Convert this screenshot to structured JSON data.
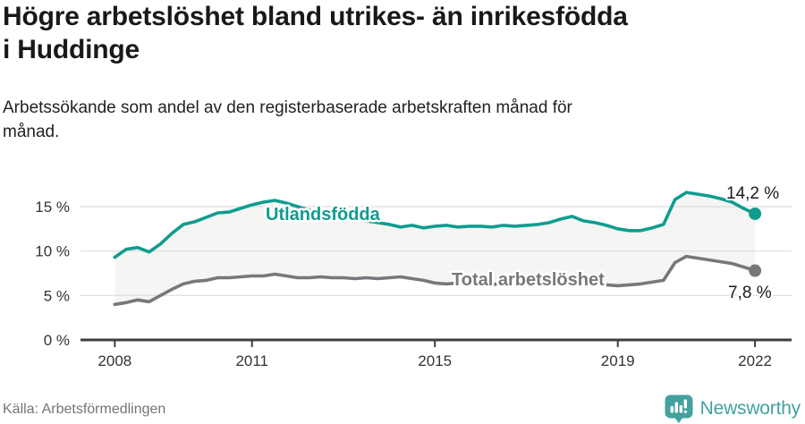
{
  "header": {
    "title": "Högre arbetslöshet bland utrikes- än inrikesfödda i Huddinge",
    "subtitle": "Arbetssökande som andel av den registerbaserade arbetskraften månad för månad."
  },
  "footer": {
    "source": "Källa: Arbetsförmedlingen",
    "brand": "Newsworthy"
  },
  "colors": {
    "accent": "#0f9c8f",
    "total": "#77777c",
    "band": "#f5f5f4",
    "grid": "#dcdcdc",
    "axis": "#3d3d3d",
    "tick": "#333333",
    "title": "#191919",
    "text": "#222222",
    "muted": "#74747a",
    "brand": "#44a19f"
  },
  "chart_data": {
    "type": "line",
    "title": "Högre arbetslöshet bland utrikes- än inrikesfödda i Huddinge",
    "subtitle": "Arbetssökande som andel av den registerbaserade arbetskraften månad för månad.",
    "unit": "%",
    "grid": true,
    "legend": "inline-labels",
    "x_start_year": 2008,
    "x_step_years": 0.25,
    "xlim": [
      2007.25,
      2022.8
    ],
    "ylim": [
      0,
      17
    ],
    "xticks": [
      {
        "v": 2008,
        "label": "2008"
      },
      {
        "v": 2011,
        "label": "2011"
      },
      {
        "v": 2015,
        "label": "2015"
      },
      {
        "v": 2019,
        "label": "2019"
      },
      {
        "v": 2022,
        "label": "2022"
      }
    ],
    "yticks": [
      {
        "v": 0,
        "label": "0 %"
      },
      {
        "v": 5,
        "label": "5 %"
      },
      {
        "v": 10,
        "label": "10 %"
      },
      {
        "v": 15,
        "label": "15 %"
      }
    ],
    "series": [
      {
        "name": "Utlandsfödda",
        "end_label": "14,2 %",
        "end_value": 14.2,
        "values": [
          9.3,
          10.2,
          10.4,
          9.9,
          10.8,
          12.0,
          13.0,
          13.3,
          13.8,
          14.3,
          14.4,
          14.8,
          15.2,
          15.5,
          15.7,
          15.4,
          15.0,
          14.6,
          14.4,
          14.1,
          13.8,
          13.6,
          13.4,
          13.2,
          13.0,
          12.7,
          12.9,
          12.6,
          12.8,
          12.9,
          12.7,
          12.8,
          12.8,
          12.7,
          12.9,
          12.8,
          12.9,
          13.0,
          13.2,
          13.6,
          13.9,
          13.4,
          13.2,
          12.9,
          12.5,
          12.3,
          12.3,
          12.6,
          13.0,
          15.8,
          16.6,
          16.4,
          16.2,
          15.9,
          15.5,
          14.8,
          14.2
        ]
      },
      {
        "name": "Total arbetslöshet",
        "end_label": "7,8 %",
        "end_value": 7.8,
        "values": [
          4.0,
          4.2,
          4.5,
          4.3,
          5.0,
          5.7,
          6.3,
          6.6,
          6.7,
          7.0,
          7.0,
          7.1,
          7.2,
          7.2,
          7.4,
          7.2,
          7.0,
          7.0,
          7.1,
          7.0,
          7.0,
          6.9,
          7.0,
          6.9,
          7.0,
          7.1,
          6.9,
          6.7,
          6.4,
          6.3,
          6.4,
          6.3,
          6.3,
          6.2,
          6.4,
          6.3,
          6.4,
          6.3,
          6.4,
          6.5,
          6.6,
          6.5,
          6.3,
          6.2,
          6.1,
          6.2,
          6.3,
          6.5,
          6.7,
          8.7,
          9.4,
          9.2,
          9.0,
          8.8,
          8.6,
          8.2,
          7.8
        ]
      }
    ]
  }
}
